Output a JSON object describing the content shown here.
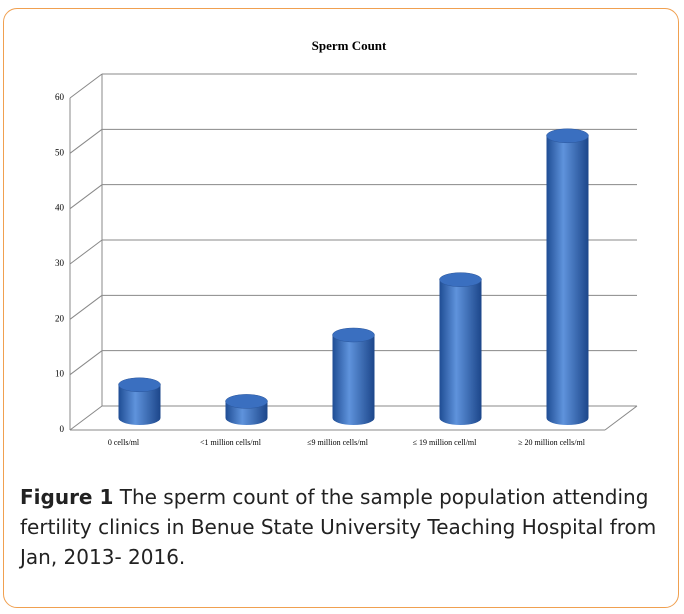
{
  "chart_data": {
    "type": "bar",
    "title": "Sperm Count",
    "categories": [
      "0 cells/ml",
      "<1 million cells/ml",
      "≤9 million  cells/ml",
      "≤ 19 million  cell/ml",
      "≥ 20 million  cells/ml"
    ],
    "values": [
      6,
      3,
      15,
      25,
      51
    ],
    "color": "#3a6fc0",
    "ylim": [
      0,
      60
    ],
    "yticks": [
      0,
      10,
      20,
      30,
      40,
      50,
      60
    ],
    "grid": true
  },
  "caption": {
    "label": "Figure 1",
    "text": "The sperm count of the sample population attending fertility clinics in Benue State University Teaching Hospital from Jan, 2013- 2016."
  }
}
